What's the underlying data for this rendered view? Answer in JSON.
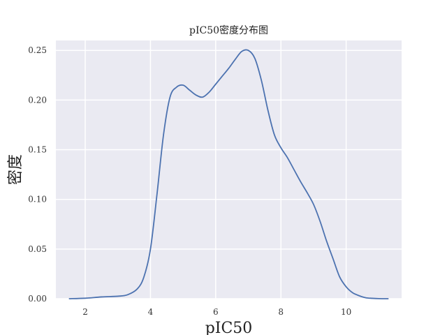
{
  "chart_data": {
    "type": "line",
    "title": "pIC50密度分布图",
    "xlabel": "pIC50",
    "ylabel": "密度",
    "xlim": [
      1.1,
      11.7
    ],
    "ylim": [
      0,
      0.26
    ],
    "x_ticks": [
      "2",
      "4",
      "6",
      "8",
      "10"
    ],
    "y_ticks": [
      "0.00",
      "0.05",
      "0.10",
      "0.15",
      "0.20",
      "0.25"
    ],
    "grid": true,
    "background_color": "#eaeaf2",
    "line_color": "#4c72b0",
    "series": [
      {
        "name": "",
        "x": [
          1.5,
          2.0,
          2.5,
          3.0,
          3.3,
          3.6,
          3.8,
          4.0,
          4.2,
          4.4,
          4.6,
          4.8,
          5.0,
          5.2,
          5.4,
          5.6,
          5.8,
          6.0,
          6.2,
          6.4,
          6.6,
          6.8,
          7.0,
          7.2,
          7.4,
          7.6,
          7.8,
          8.0,
          8.2,
          8.4,
          8.6,
          8.8,
          9.0,
          9.2,
          9.4,
          9.6,
          9.8,
          10.0,
          10.2,
          10.4,
          10.6,
          10.8,
          11.0,
          11.3
        ],
        "y": [
          0.0,
          0.0005,
          0.0018,
          0.0025,
          0.004,
          0.01,
          0.022,
          0.05,
          0.105,
          0.165,
          0.203,
          0.213,
          0.215,
          0.21,
          0.205,
          0.203,
          0.208,
          0.216,
          0.224,
          0.232,
          0.241,
          0.249,
          0.25,
          0.242,
          0.22,
          0.19,
          0.165,
          0.152,
          0.142,
          0.13,
          0.118,
          0.107,
          0.095,
          0.078,
          0.058,
          0.04,
          0.022,
          0.012,
          0.006,
          0.003,
          0.001,
          0.0004,
          0.0001,
          0.0
        ]
      }
    ]
  }
}
